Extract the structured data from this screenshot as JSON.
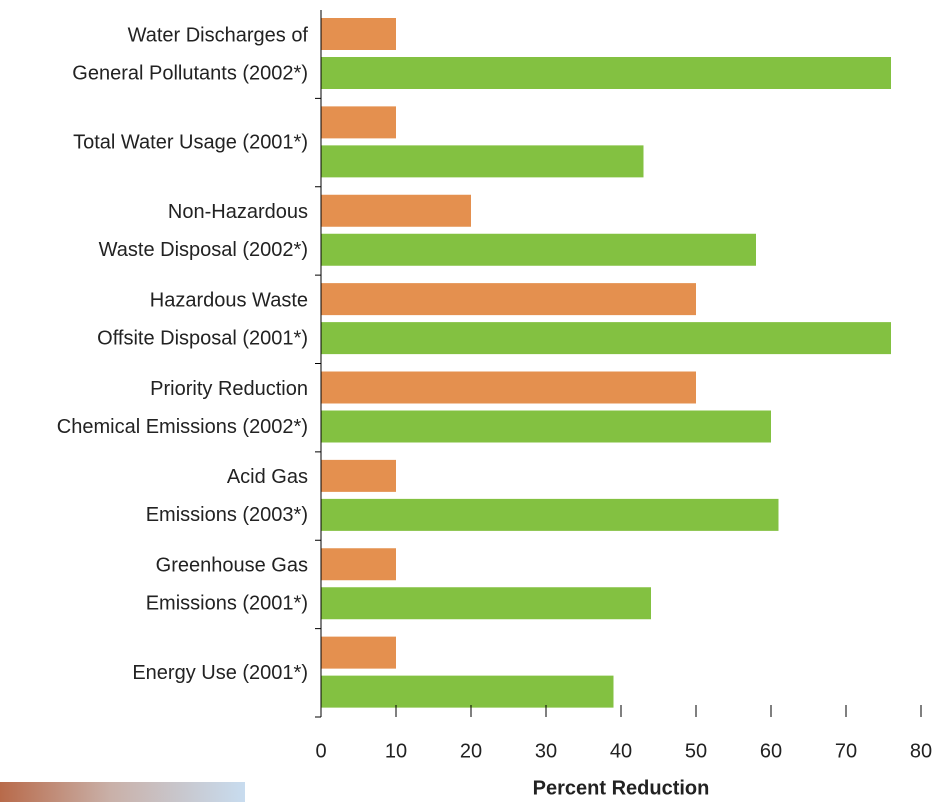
{
  "chart_data": {
    "type": "hbar",
    "categories": [
      [
        "Water Discharges of",
        "General Pollutants (2002*)"
      ],
      [
        "Total Water Usage (2001*)"
      ],
      [
        "Non-Hazardous",
        "Waste Disposal (2002*)"
      ],
      [
        "Hazardous Waste",
        "Offsite Disposal (2001*)"
      ],
      [
        "Priority Reduction",
        "Chemical Emissions (2002*)"
      ],
      [
        "Acid Gas",
        "Emissions (2003*)"
      ],
      [
        "Greenhouse Gas",
        "Emissions (2001*)"
      ],
      [
        "Energy Use (2001*)"
      ]
    ],
    "series": [
      {
        "color": "#e4904f",
        "values": [
          10,
          10,
          20,
          50,
          50,
          10,
          10,
          10
        ]
      },
      {
        "color": "#83c141",
        "values": [
          76,
          43,
          58,
          76,
          60,
          61,
          44,
          39
        ]
      }
    ],
    "xlim": [
      0,
      80
    ],
    "xticks": [
      0,
      10,
      20,
      30,
      40,
      50,
      60,
      70,
      80
    ],
    "x_label": "Percent Reduction"
  }
}
